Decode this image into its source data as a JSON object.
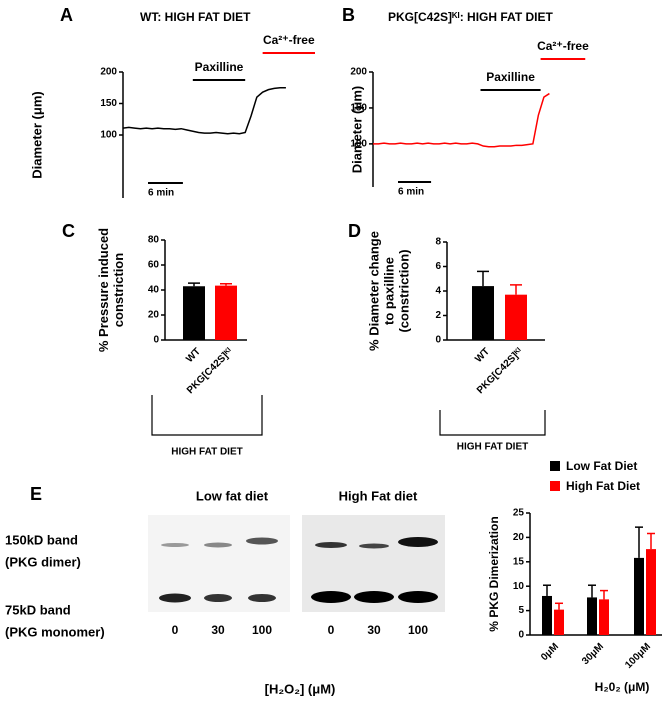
{
  "chart_data": [
    {
      "type": "line",
      "panel": "A",
      "title": "WT: HIGH FAT DIET",
      "y_label": "Diameter (μm)",
      "x": [
        0,
        1,
        2,
        3,
        4,
        5,
        6,
        7,
        8,
        9,
        10,
        11,
        12,
        13,
        14,
        15,
        16,
        17,
        18,
        19,
        20,
        21,
        22,
        23,
        24,
        25,
        26,
        27,
        28
      ],
      "values": [
        111,
        112,
        111,
        110,
        111,
        110,
        111,
        110,
        110,
        109,
        110,
        108,
        106,
        104,
        103,
        103,
        104,
        103,
        102,
        103,
        102,
        104,
        130,
        160,
        168,
        172,
        174,
        175,
        175
      ],
      "color": "#000000",
      "xlim": [
        0,
        33
      ],
      "ylim": [
        0,
        200
      ],
      "yticks": [
        100,
        150,
        200
      ],
      "annotations": [
        {
          "text": "Paxilline",
          "x": [
            12,
            21
          ],
          "color": "#000000"
        },
        {
          "text": "Ca²⁺-free",
          "x": [
            24,
            33
          ],
          "color": "#ff0000"
        }
      ],
      "scale_bar": {
        "label": "6 min",
        "value": 6
      }
    },
    {
      "type": "line",
      "panel": "B",
      "title": "PKG[C42S]ᴷᴵ: HIGH FAT DIET",
      "y_label": "Diameter (μm)",
      "x": [
        0,
        1,
        2,
        3,
        4,
        5,
        6,
        7,
        8,
        9,
        10,
        11,
        12,
        13,
        14,
        15,
        16,
        17,
        18,
        19,
        20,
        21,
        22,
        23,
        24,
        25,
        26,
        27,
        28,
        29,
        30,
        31,
        32
      ],
      "values": [
        100,
        100,
        101,
        100,
        100,
        101,
        100,
        100,
        101,
        100,
        101,
        100,
        100,
        101,
        100,
        101,
        100,
        100,
        101,
        100,
        97,
        96,
        96,
        97,
        97,
        97,
        98,
        98,
        99,
        100,
        140,
        165,
        170
      ],
      "color": "#ff0000",
      "xlim": [
        0,
        39
      ],
      "ylim": [
        40,
        200
      ],
      "yticks": [
        100,
        150,
        200
      ],
      "annotations": [
        {
          "text": "Paxilline",
          "x": [
            19.5,
            30.4
          ],
          "color": "#000000"
        },
        {
          "text": "Ca²⁺-free",
          "x": [
            30.4,
            38.5
          ],
          "color": "#ff0000"
        }
      ],
      "scale_bar": {
        "label": "6 min",
        "value": 6
      }
    },
    {
      "type": "bar",
      "panel": "C",
      "y_label": [
        "% Pressure induced",
        "constriction"
      ],
      "categories": [
        "WT",
        "PKG[C42S]ᴷᴵ"
      ],
      "values": [
        43,
        43.5
      ],
      "errors": [
        2.5,
        1.5
      ],
      "colors": [
        "#000000",
        "#ff0000"
      ],
      "ylim": [
        0,
        80
      ],
      "yticks": [
        0,
        20,
        40,
        60,
        80
      ],
      "group_label": "HIGH FAT DIET"
    },
    {
      "type": "bar",
      "panel": "D",
      "y_label": [
        "% Diameter change",
        "to paxilline",
        "(constriction)"
      ],
      "categories": [
        "WT",
        "PKG[C42S]ᴷᴵ"
      ],
      "values": [
        4.4,
        3.7
      ],
      "errors": [
        1.2,
        0.8
      ],
      "colors": [
        "#000000",
        "#ff0000"
      ],
      "ylim": [
        0,
        8
      ],
      "yticks": [
        0,
        2,
        4,
        6,
        8
      ],
      "group_label": "HIGH FAT DIET"
    },
    {
      "type": "grouped_bar",
      "y_label": "% PKG Dimerization",
      "x_label": "H₂0₂ (μM)",
      "categories": [
        "0μM",
        "30μM",
        "100μM"
      ],
      "series": [
        {
          "name": "Low Fat Diet",
          "color": "#000000",
          "values": [
            8,
            7.7,
            15.8
          ],
          "errors": [
            2.2,
            2.5,
            6.3
          ]
        },
        {
          "name": "High Fat Diet",
          "color": "#ff0000",
          "values": [
            5.2,
            7.3,
            17.6
          ],
          "errors": [
            1.3,
            1.8,
            3.2
          ]
        }
      ],
      "ylim": [
        0,
        25
      ],
      "yticks": [
        0,
        5,
        10,
        15,
        20,
        25
      ]
    }
  ],
  "blot": {
    "panel": "E",
    "titles": [
      {
        "text": "Low fat diet",
        "color": "#000000"
      },
      {
        "text": "High Fat diet",
        "color": "#ff0000"
      }
    ],
    "row_labels": [
      [
        "150kD band",
        "(PKG dimer)"
      ],
      [
        "75kD band",
        "(PKG monomer)"
      ]
    ],
    "lanes": [
      "0",
      "30",
      "100"
    ],
    "x_label": "[H₂O₂] (μM)"
  }
}
